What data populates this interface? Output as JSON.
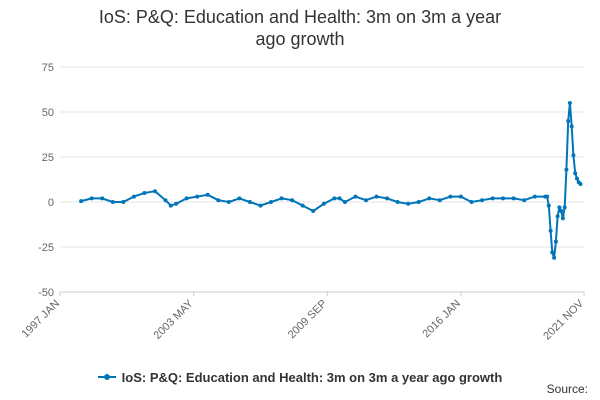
{
  "title": "IoS: P&Q: Education and Health: 3m on 3m a year ago growth",
  "source_label": "Source:",
  "legend": {
    "position": "bottom"
  },
  "colors": {
    "series": "#0075b8",
    "grid": "#e6e6e6"
  },
  "chart_data": {
    "type": "line",
    "title": "IoS: P&Q: Education and Health: 3m on 3m a year ago growth",
    "xlabel": "",
    "ylabel": "",
    "ylim": [
      -50,
      75
    ],
    "yticks": [
      -50,
      -25,
      0,
      25,
      50,
      75
    ],
    "xlim": [
      "1997 JAN",
      "2021 NOV"
    ],
    "xtick_labels": [
      "1997 JAN",
      "2003 MAY",
      "2009 SEP",
      "2016 JAN",
      "2021 NOV"
    ],
    "grid": true,
    "series": [
      {
        "name": "IoS: P&Q: Education and Health: 3m on 3m a year ago growth",
        "x": [
          "1998-01",
          "1998-07",
          "1999-01",
          "1999-07",
          "2000-01",
          "2000-07",
          "2001-01",
          "2001-07",
          "2002-01",
          "2002-04",
          "2002-07",
          "2003-01",
          "2003-07",
          "2004-01",
          "2004-07",
          "2005-01",
          "2005-07",
          "2006-01",
          "2006-07",
          "2007-01",
          "2007-07",
          "2008-01",
          "2008-07",
          "2009-01",
          "2009-07",
          "2010-01",
          "2010-04",
          "2010-07",
          "2011-01",
          "2011-07",
          "2012-01",
          "2012-07",
          "2013-01",
          "2013-07",
          "2014-01",
          "2014-07",
          "2015-01",
          "2015-07",
          "2016-01",
          "2016-07",
          "2017-01",
          "2017-07",
          "2018-01",
          "2018-07",
          "2019-01",
          "2019-07",
          "2020-01",
          "2020-02",
          "2020-03",
          "2020-04",
          "2020-05",
          "2020-06",
          "2020-07",
          "2020-08",
          "2020-09",
          "2020-10",
          "2020-11",
          "2020-12",
          "2021-01",
          "2021-02",
          "2021-03",
          "2021-04",
          "2021-05",
          "2021-06",
          "2021-07",
          "2021-08",
          "2021-09"
        ],
        "values": [
          0.5,
          2,
          2,
          0,
          0,
          3,
          5,
          6,
          1,
          -2,
          -1,
          2,
          3,
          4,
          1,
          0,
          2,
          0,
          -2,
          0,
          2,
          1,
          -2,
          -5,
          -1,
          2,
          2,
          0,
          3,
          1,
          3,
          2,
          0,
          -1,
          0,
          2,
          1,
          3,
          3,
          0,
          1,
          2,
          2,
          2,
          1,
          3,
          3,
          3,
          -2,
          -16,
          -28,
          -31,
          -22,
          -8,
          -3,
          -5,
          -9,
          -3,
          18,
          45,
          55,
          42,
          26,
          16,
          13,
          11,
          10
        ]
      }
    ]
  }
}
